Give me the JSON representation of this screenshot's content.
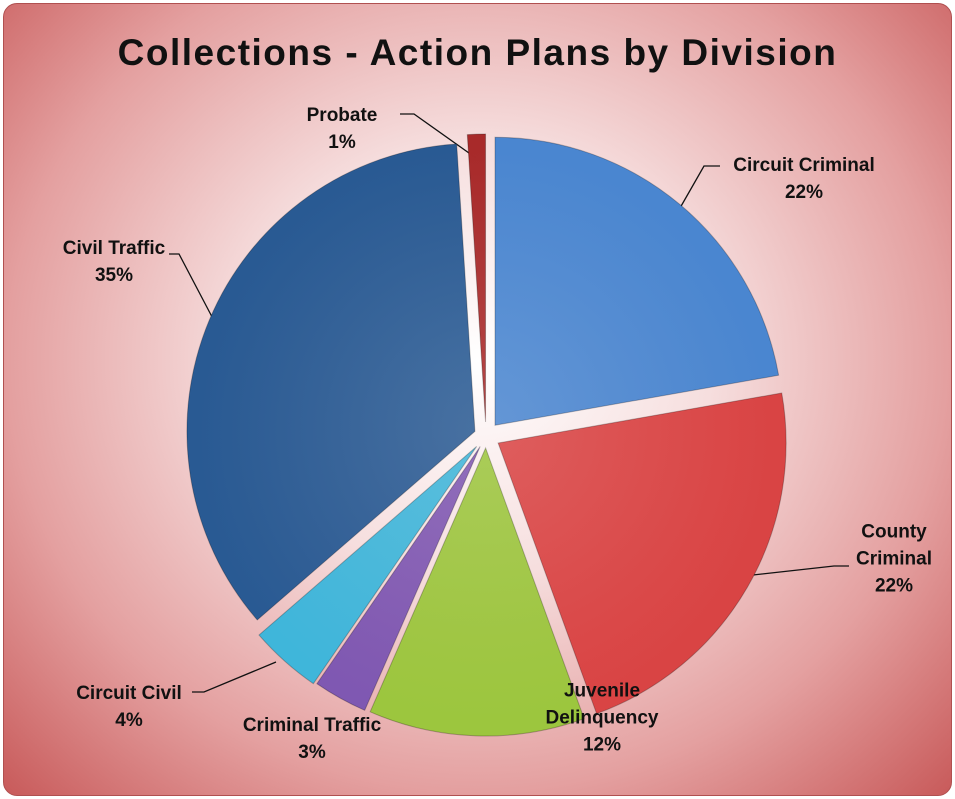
{
  "chart_data": {
    "type": "pie",
    "title": "Collections - Action Plans by Division",
    "categories": [
      "Circuit Criminal",
      "County Criminal",
      "Juvenile Delinquency",
      "Criminal Traffic",
      "Circuit Civil",
      "Civil Traffic",
      "Probate"
    ],
    "values": [
      22,
      22,
      12,
      3,
      4,
      35,
      1
    ],
    "value_labels": [
      "22%",
      "22%",
      "12%",
      "3%",
      "4%",
      "35%",
      "1%"
    ],
    "colors": [
      "#4a86d0",
      "#d94444",
      "#9cc63e",
      "#7f58b2",
      "#3fb6da",
      "#295a93",
      "#a82a2a"
    ]
  }
}
